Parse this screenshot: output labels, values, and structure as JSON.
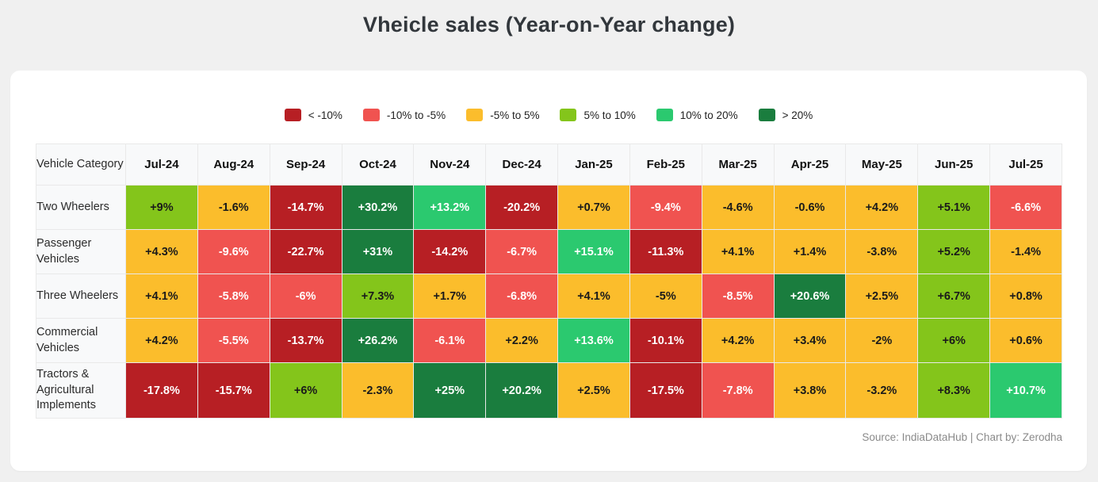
{
  "page": {
    "title": "Vheicle sales (Year-on-Year change)",
    "source_note": "Source: IndiaDataHub | Chart by: Zerodha"
  },
  "colors": {
    "dark_red": "#b71f24",
    "light_red": "#f05350",
    "yellow": "#fbbd2c",
    "light_green": "#84c51b",
    "mid_green": "#2bc96f",
    "dark_green": "#1a7d3e"
  },
  "legend": [
    {
      "label": "< -10%",
      "color_key": "dark_red"
    },
    {
      "label": "-10% to -5%",
      "color_key": "light_red"
    },
    {
      "label": "-5% to 5%",
      "color_key": "yellow"
    },
    {
      "label": "5% to 10%",
      "color_key": "light_green"
    },
    {
      "label": "10% to 20%",
      "color_key": "mid_green"
    },
    {
      "label": "> 20%",
      "color_key": "dark_green"
    }
  ],
  "table": {
    "corner_header": "Vehicle Category",
    "months": [
      "Jul-24",
      "Aug-24",
      "Sep-24",
      "Oct-24",
      "Nov-24",
      "Dec-24",
      "Jan-25",
      "Feb-25",
      "Mar-25",
      "Apr-25",
      "May-25",
      "Jun-25",
      "Jul-25"
    ],
    "rows": [
      {
        "category": "Two Wheelers",
        "display": [
          "+9%",
          "-1.6%",
          "-14.7%",
          "+30.2%",
          "+13.2%",
          "-20.2%",
          "+0.7%",
          "-9.4%",
          "-4.6%",
          "-0.6%",
          "+4.2%",
          "+5.1%",
          "-6.6%"
        ]
      },
      {
        "category": "Passenger Vehicles",
        "display": [
          "+4.3%",
          "-9.6%",
          "-22.7%",
          "+31%",
          "-14.2%",
          "-6.7%",
          "+15.1%",
          "-11.3%",
          "+4.1%",
          "+1.4%",
          "-3.8%",
          "+5.2%",
          "-1.4%"
        ]
      },
      {
        "category": "Three Wheelers",
        "display": [
          "+4.1%",
          "-5.8%",
          "-6%",
          "+7.3%",
          "+1.7%",
          "-6.8%",
          "+4.1%",
          "-5%",
          "-8.5%",
          "+20.6%",
          "+2.5%",
          "+6.7%",
          "+0.8%"
        ]
      },
      {
        "category": "Commercial Vehicles",
        "display": [
          "+4.2%",
          "-5.5%",
          "-13.7%",
          "+26.2%",
          "-6.1%",
          "+2.2%",
          "+13.6%",
          "-10.1%",
          "+4.2%",
          "+3.4%",
          "-2%",
          "+6%",
          "+0.6%"
        ]
      },
      {
        "category": "Tractors & Agricultural Implements",
        "display": [
          "-17.8%",
          "-15.7%",
          "+6%",
          "-2.3%",
          "+25%",
          "+20.2%",
          "+2.5%",
          "-17.5%",
          "-7.8%",
          "+3.8%",
          "-3.2%",
          "+8.3%",
          "+10.7%"
        ]
      }
    ]
  },
  "chart_data": {
    "type": "heatmap",
    "title": "Vheicle sales (Year-on-Year change)",
    "x": [
      "Jul-24",
      "Aug-24",
      "Sep-24",
      "Oct-24",
      "Nov-24",
      "Dec-24",
      "Jan-25",
      "Feb-25",
      "Mar-25",
      "Apr-25",
      "May-25",
      "Jun-25",
      "Jul-25"
    ],
    "y": [
      "Two Wheelers",
      "Passenger Vehicles",
      "Three Wheelers",
      "Commercial Vehicles",
      "Tractors & Agricultural Implements"
    ],
    "series": [
      {
        "name": "Two Wheelers",
        "values": [
          9,
          -1.6,
          -14.7,
          30.2,
          13.2,
          -20.2,
          0.7,
          -9.4,
          -4.6,
          -0.6,
          4.2,
          5.1,
          -6.6
        ]
      },
      {
        "name": "Passenger Vehicles",
        "values": [
          4.3,
          -9.6,
          -22.7,
          31,
          -14.2,
          -6.7,
          15.1,
          -11.3,
          4.1,
          1.4,
          -3.8,
          5.2,
          -1.4
        ]
      },
      {
        "name": "Three Wheelers",
        "values": [
          4.1,
          -5.8,
          -6,
          7.3,
          1.7,
          -6.8,
          4.1,
          -5,
          -8.5,
          20.6,
          2.5,
          6.7,
          0.8
        ]
      },
      {
        "name": "Commercial Vehicles",
        "values": [
          4.2,
          -5.5,
          -13.7,
          26.2,
          -6.1,
          2.2,
          13.6,
          -10.1,
          4.2,
          3.4,
          -2,
          6,
          0.6
        ]
      },
      {
        "name": "Tractors & Agricultural Implements",
        "values": [
          -17.8,
          -15.7,
          6,
          -2.3,
          25,
          20.2,
          2.5,
          -17.5,
          -7.8,
          3.8,
          -3.2,
          8.3,
          10.7
        ]
      }
    ],
    "unit": "%",
    "color_scale": [
      {
        "range": "< -10%",
        "color": "#b71f24"
      },
      {
        "range": "-10% to -5%",
        "color": "#f05350"
      },
      {
        "range": "-5% to 5%",
        "color": "#fbbd2c"
      },
      {
        "range": "5% to 10%",
        "color": "#84c51b"
      },
      {
        "range": "10% to 20%",
        "color": "#2bc96f"
      },
      {
        "range": "> 20%",
        "color": "#1a7d3e"
      }
    ],
    "legend_position": "top-center"
  }
}
